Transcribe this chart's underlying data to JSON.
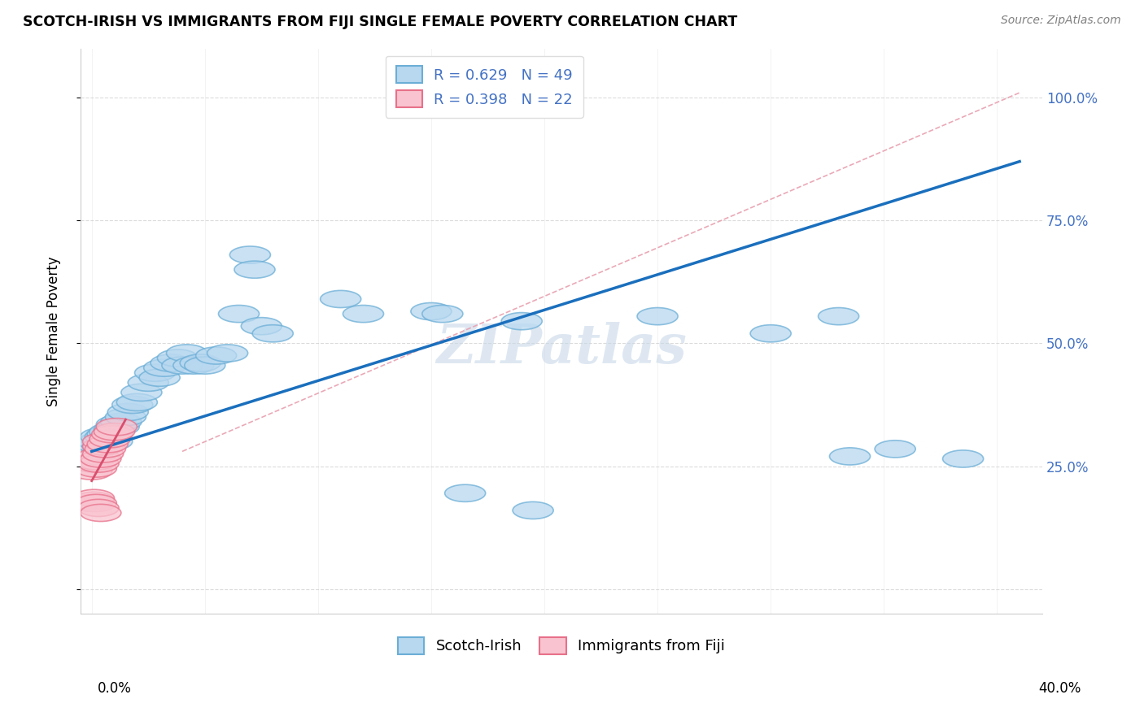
{
  "title": "SCOTCH-IRISH VS IMMIGRANTS FROM FIJI SINGLE FEMALE POVERTY CORRELATION CHART",
  "source": "Source: ZipAtlas.com",
  "ylabel": "Single Female Poverty",
  "y_ticks": [
    0.0,
    0.25,
    0.5,
    0.75,
    1.0
  ],
  "y_tick_labels": [
    "",
    "25.0%",
    "50.0%",
    "75.0%",
    "100.0%"
  ],
  "blue_color_face": "#b8d8f0",
  "blue_color_edge": "#6baed6",
  "pink_color_face": "#f9c4d0",
  "pink_color_edge": "#e8708a",
  "blue_line_color": "#1a6fbd",
  "pink_line_color": "#d94f6e",
  "dash_line_color": "#e8a0b0",
  "watermark": "ZIPatlas",
  "blue_scatter": [
    [
      0.001,
      0.285
    ],
    [
      0.002,
      0.295
    ],
    [
      0.003,
      0.3
    ],
    [
      0.004,
      0.31
    ],
    [
      0.005,
      0.29
    ],
    [
      0.006,
      0.31
    ],
    [
      0.007,
      0.315
    ],
    [
      0.008,
      0.32
    ],
    [
      0.009,
      0.3
    ],
    [
      0.01,
      0.325
    ],
    [
      0.011,
      0.335
    ],
    [
      0.012,
      0.33
    ],
    [
      0.013,
      0.34
    ],
    [
      0.015,
      0.35
    ],
    [
      0.016,
      0.36
    ],
    [
      0.018,
      0.375
    ],
    [
      0.02,
      0.38
    ],
    [
      0.022,
      0.4
    ],
    [
      0.025,
      0.42
    ],
    [
      0.028,
      0.44
    ],
    [
      0.03,
      0.43
    ],
    [
      0.032,
      0.45
    ],
    [
      0.035,
      0.46
    ],
    [
      0.038,
      0.47
    ],
    [
      0.04,
      0.455
    ],
    [
      0.042,
      0.48
    ],
    [
      0.045,
      0.455
    ],
    [
      0.048,
      0.46
    ],
    [
      0.05,
      0.455
    ],
    [
      0.055,
      0.475
    ],
    [
      0.06,
      0.48
    ],
    [
      0.065,
      0.56
    ],
    [
      0.07,
      0.68
    ],
    [
      0.072,
      0.65
    ],
    [
      0.075,
      0.535
    ],
    [
      0.08,
      0.52
    ],
    [
      0.11,
      0.59
    ],
    [
      0.12,
      0.56
    ],
    [
      0.15,
      0.565
    ],
    [
      0.155,
      0.56
    ],
    [
      0.19,
      0.545
    ],
    [
      0.25,
      0.555
    ],
    [
      0.3,
      0.52
    ],
    [
      0.33,
      0.555
    ],
    [
      0.335,
      0.27
    ],
    [
      0.355,
      0.285
    ],
    [
      0.385,
      0.265
    ],
    [
      0.165,
      0.195
    ],
    [
      0.195,
      0.16
    ]
  ],
  "pink_scatter": [
    [
      0.0,
      0.24
    ],
    [
      0.001,
      0.255
    ],
    [
      0.002,
      0.245
    ],
    [
      0.002,
      0.26
    ],
    [
      0.003,
      0.27
    ],
    [
      0.003,
      0.255
    ],
    [
      0.004,
      0.265
    ],
    [
      0.005,
      0.275
    ],
    [
      0.005,
      0.29
    ],
    [
      0.005,
      0.3
    ],
    [
      0.006,
      0.285
    ],
    [
      0.007,
      0.295
    ],
    [
      0.008,
      0.305
    ],
    [
      0.009,
      0.315
    ],
    [
      0.01,
      0.32
    ],
    [
      0.011,
      0.33
    ],
    [
      0.0,
      0.175
    ],
    [
      0.001,
      0.18
    ],
    [
      0.001,
      0.185
    ],
    [
      0.002,
      0.175
    ],
    [
      0.003,
      0.165
    ],
    [
      0.004,
      0.155
    ]
  ],
  "xlim": [
    -0.005,
    0.42
  ],
  "ylim": [
    -0.05,
    1.1
  ]
}
